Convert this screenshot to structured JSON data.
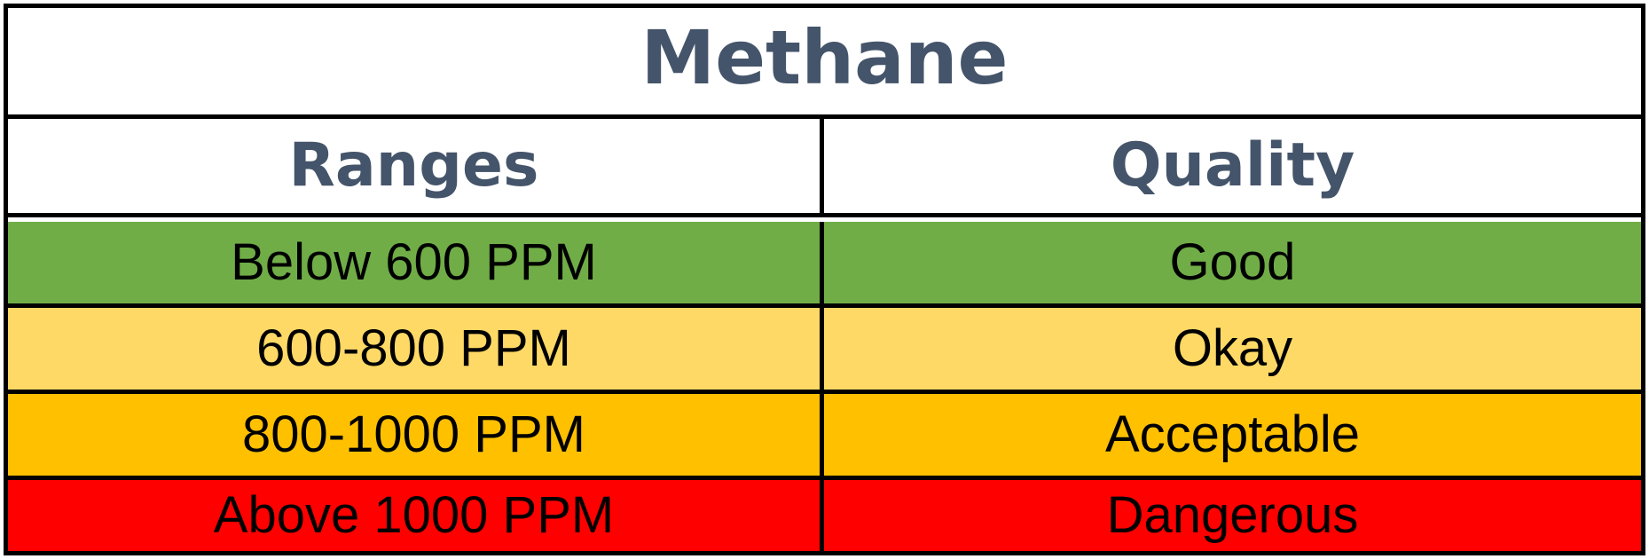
{
  "table": {
    "title": "Methane",
    "headers": {
      "ranges": "Ranges",
      "quality": "Quality"
    },
    "rows": [
      {
        "range": "Below 600 PPM",
        "quality": "Good",
        "color": "#70ad47"
      },
      {
        "range": "600-800 PPM",
        "quality": "Okay",
        "color": "#ffd966"
      },
      {
        "range": "800-1000 PPM",
        "quality": "Acceptable",
        "color": "#ffc000"
      },
      {
        "range": "Above 1000 PPM",
        "quality": "Dangerous",
        "color": "#ff0000"
      }
    ]
  },
  "colors": {
    "heading_text": "#44546a",
    "border": "#000000",
    "body_text": "#000000"
  }
}
